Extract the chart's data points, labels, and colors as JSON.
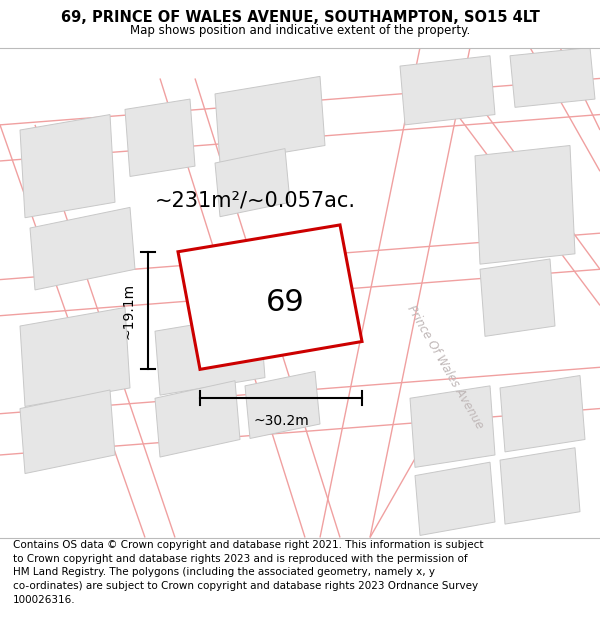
{
  "title": "69, PRINCE OF WALES AVENUE, SOUTHAMPTON, SO15 4LT",
  "subtitle": "Map shows position and indicative extent of the property.",
  "footer": "Contains OS data © Crown copyright and database right 2021. This information is subject\nto Crown copyright and database rights 2023 and is reproduced with the permission of\nHM Land Registry. The polygons (including the associated geometry, namely x, y\nco-ordinates) are subject to Crown copyright and database rights 2023 Ordnance Survey\n100026316.",
  "area_label": "~231m²/~0.057ac.",
  "width_label": "~30.2m",
  "height_label": "~19.1m",
  "plot_number": "69",
  "street_label": "Prince Of Wales Avenue",
  "map_bg": "#ffffff",
  "building_fill": "#e6e6e6",
  "building_edge": "#c8c8c8",
  "road_line_color": "#f0a0a0",
  "plot_edge": "#cc0000",
  "plot_fill": "#ffffff",
  "title_fontsize": 10.5,
  "subtitle_fontsize": 8.5,
  "footer_fontsize": 7.5,
  "area_fontsize": 15,
  "number_fontsize": 22,
  "dim_fontsize": 10,
  "street_fontsize": 8.5
}
